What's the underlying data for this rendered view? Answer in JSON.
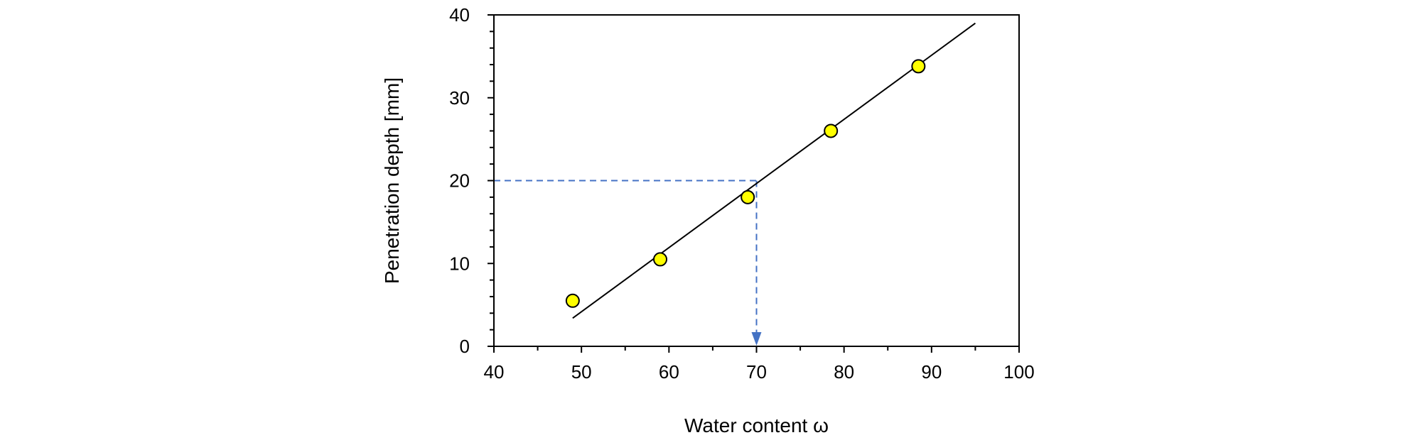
{
  "chart_data": {
    "type": "scatter",
    "title": "",
    "xlabel": "Water content ω",
    "ylabel": "Penetration depth [mm]",
    "xlim": [
      40,
      100
    ],
    "ylim": [
      0,
      40
    ],
    "x_ticks": [
      "40",
      "50",
      "60",
      "70",
      "80",
      "90",
      "100"
    ],
    "y_ticks": [
      "0",
      "10",
      "20",
      "30",
      "40"
    ],
    "grid": false,
    "legend": "none",
    "series": [
      {
        "points": [
          {
            "x": 49,
            "y": 5.5
          },
          {
            "x": 59,
            "y": 10.5
          },
          {
            "x": 69,
            "y": 18
          },
          {
            "x": 78.5,
            "y": 26
          },
          {
            "x": 88.5,
            "y": 33.8
          }
        ],
        "marker_color": "#ffff00"
      }
    ],
    "fit_line": {
      "x": [
        49,
        95
      ],
      "y": [
        3.4,
        39
      ]
    },
    "reference": {
      "y": 20,
      "x": 70,
      "color": "#4472c4",
      "style": "dashed",
      "arrow": "down"
    }
  }
}
